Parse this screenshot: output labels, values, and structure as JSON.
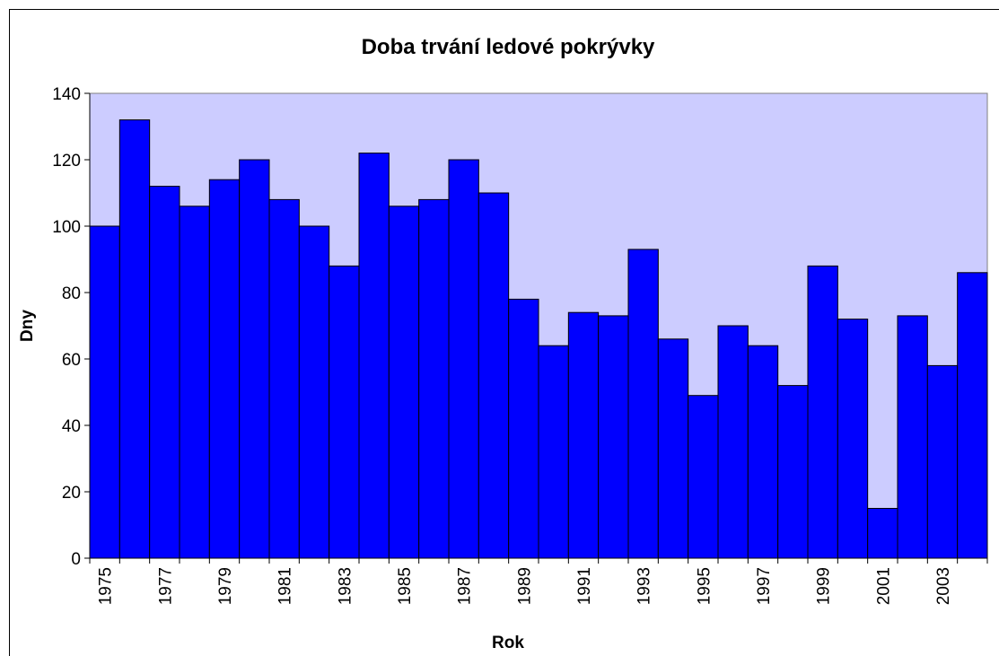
{
  "chart_data": {
    "type": "bar",
    "title": "Doba trvání ledové pokrývky",
    "x_label": "Rok",
    "y_label": "Dny",
    "categories": [
      "1975",
      null,
      "1977",
      null,
      "1979",
      null,
      "1981",
      null,
      "1983",
      null,
      "1985",
      null,
      "1987",
      null,
      "1989",
      null,
      "1991",
      null,
      "1993",
      null,
      "1995",
      null,
      "1997",
      null,
      "1999",
      null,
      "2001",
      null,
      "2003",
      null
    ],
    "values": [
      100,
      132,
      112,
      106,
      114,
      120,
      108,
      100,
      88,
      122,
      106,
      108,
      120,
      110,
      78,
      64,
      74,
      73,
      93,
      66,
      49,
      70,
      64,
      52,
      88,
      72,
      15,
      73,
      58,
      86
    ],
    "color": "#0000ff",
    "plot_background": "#ccccff",
    "ylim": [
      0,
      140
    ],
    "yticks": [
      0,
      20,
      40,
      60,
      80,
      100,
      120,
      140
    ],
    "grid": false
  }
}
